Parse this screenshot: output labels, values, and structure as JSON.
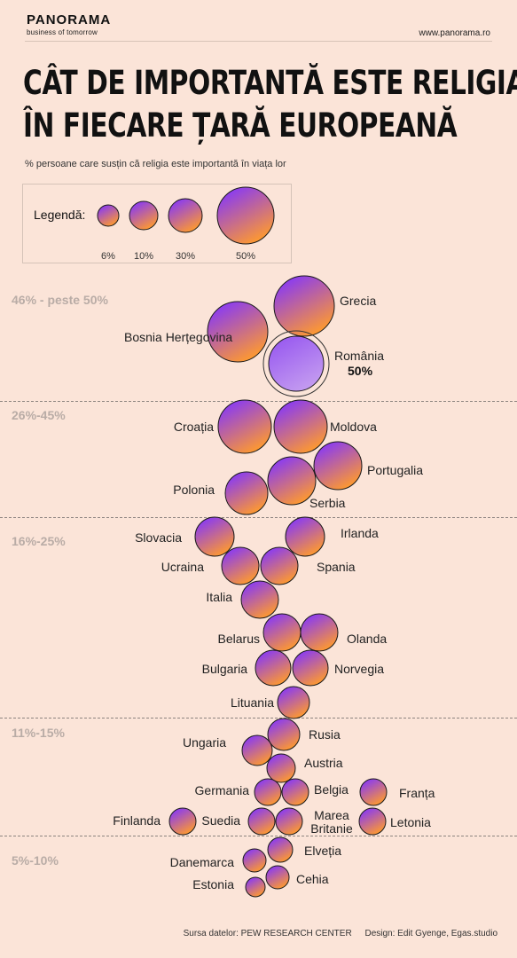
{
  "header": {
    "brand": "PANORAMA",
    "tagline": "business of tomorrow",
    "website": "www.panorama.ro"
  },
  "title_line1": "CÂT DE IMPORTANTĂ ESTE RELIGIA",
  "title_line2": "ÎN FIECARE ȚARĂ EUROPEANĂ",
  "subtitle": "% persoane care susțin că religia este importantă în viața lor",
  "legend": {
    "label": "Legendă:",
    "items": [
      "6%",
      "10%",
      "30%",
      "50%"
    ]
  },
  "ranges": [
    "46% - peste 50%",
    "26%-45%",
    "16%-25%",
    "11%-15%",
    "5%-10%"
  ],
  "highlight": {
    "country": "România",
    "value_label": "50%"
  },
  "colors": {
    "bubble_top": "#8b3cf0",
    "bubble_bottom": "#ff9a2e",
    "highlight_fill": "#a878f0",
    "background": "#fbe4d8"
  },
  "chart_data": {
    "type": "bubble",
    "title": "CÂT DE IMPORTANTĂ ESTE RELIGIA ÎN FIECARE ȚARĂ EUROPEANĂ",
    "value_unit": "%",
    "groups": [
      {
        "range": "46% - peste 50%",
        "countries": [
          {
            "name": "Grecia",
            "value": 55
          },
          {
            "name": "Bosnia Herțegovina",
            "value": 54
          },
          {
            "name": "România",
            "value": 50
          }
        ]
      },
      {
        "range": "26%-45%",
        "countries": [
          {
            "name": "Croația",
            "value": 38
          },
          {
            "name": "Moldova",
            "value": 38
          },
          {
            "name": "Portugalia",
            "value": 36
          },
          {
            "name": "Polonia",
            "value": 29
          },
          {
            "name": "Serbia",
            "value": 34
          }
        ]
      },
      {
        "range": "16%-25%",
        "countries": [
          {
            "name": "Slovacia",
            "value": 23
          },
          {
            "name": "Irlanda",
            "value": 22
          },
          {
            "name": "Ucraina",
            "value": 22
          },
          {
            "name": "Spania",
            "value": 22
          },
          {
            "name": "Italia",
            "value": 21
          },
          {
            "name": "Belarus",
            "value": 21
          },
          {
            "name": "Olanda",
            "value": 20
          },
          {
            "name": "Bulgaria",
            "value": 19
          },
          {
            "name": "Norvegia",
            "value": 19
          },
          {
            "name": "Lituania",
            "value": 16
          }
        ]
      },
      {
        "range": "11%-15%",
        "countries": [
          {
            "name": "Rusia",
            "value": 15
          },
          {
            "name": "Ungaria",
            "value": 14
          },
          {
            "name": "Austria",
            "value": 13
          },
          {
            "name": "Germania",
            "value": 11
          },
          {
            "name": "Belgia",
            "value": 11
          },
          {
            "name": "Franța",
            "value": 11
          },
          {
            "name": "Finlanda",
            "value": 11
          },
          {
            "name": "Suedia",
            "value": 11
          },
          {
            "name": "Marea Britanie",
            "value": 11
          },
          {
            "name": "Letonia",
            "value": 11
          }
        ]
      },
      {
        "range": "5%-10%",
        "countries": [
          {
            "name": "Elveția",
            "value": 9
          },
          {
            "name": "Danemarca",
            "value": 7
          },
          {
            "name": "Cehia",
            "value": 7
          },
          {
            "name": "Estonia",
            "value": 6
          }
        ]
      }
    ]
  },
  "footer": {
    "source": "Sursa datelor: PEW RESEARCH CENTER",
    "design": "Design: Edit Gyenge, Egas.studio"
  }
}
